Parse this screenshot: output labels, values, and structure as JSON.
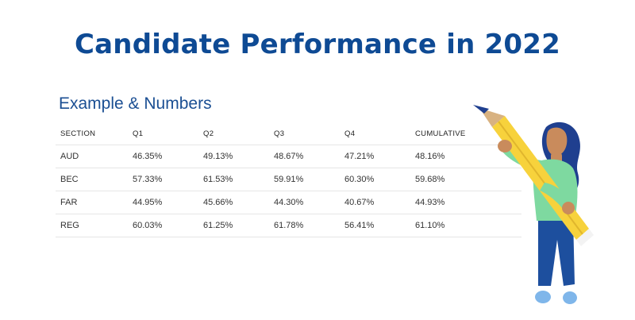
{
  "title": "Candidate Performance in 2022",
  "subtitle": "Example & Numbers",
  "table": {
    "headers": [
      "SECTION",
      "Q1",
      "Q2",
      "Q3",
      "Q4",
      "CUMULATIVE"
    ],
    "rows": [
      [
        "AUD",
        "46.35%",
        "49.13%",
        "48.67%",
        "47.21%",
        "48.16%"
      ],
      [
        "BEC",
        "57.33%",
        "61.53%",
        "59.91%",
        "60.30%",
        "59.68%"
      ],
      [
        "FAR",
        "44.95%",
        "45.66%",
        "44.30%",
        "40.67%",
        "44.93%"
      ],
      [
        "REG",
        "60.03%",
        "61.25%",
        "61.78%",
        "56.41%",
        "61.10%"
      ]
    ]
  },
  "colors": {
    "title": "#0e4a94",
    "hair": "#1f3f8f",
    "skin": "#c98b5c",
    "shirt": "#7ed9a0",
    "pants": "#1d4f9e",
    "pencil": "#f7d23c",
    "shoes": "#7fb6ea"
  },
  "illustration": {
    "name": "woman-holding-pencil-illustration"
  }
}
